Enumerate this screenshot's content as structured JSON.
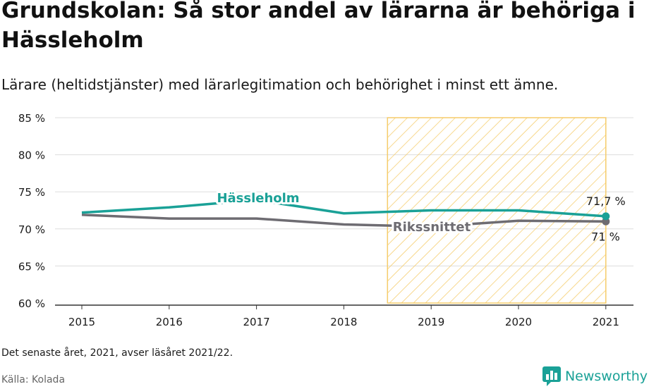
{
  "title": "Grundskolan: Så stor andel av lärarna är behöriga i Hässleholm",
  "subtitle": "Lärare (heltidstjänster) med lärarlegitimation och behörighet i minst ett ämne.",
  "note": "Det senaste året, 2021, avser läsåret 2021/22.",
  "source": "Källa: Kolada",
  "brand": "Newsworthy",
  "colors": {
    "hassleholm": "#1aa197",
    "riket": "#6e6c72",
    "highlight": "#f5cc6a",
    "grid": "#dddddd",
    "text": "#1a1a1a"
  },
  "chart_data": {
    "type": "line",
    "x": [
      "2015",
      "2016",
      "2017",
      "2018",
      "2019",
      "2020",
      "2021"
    ],
    "yticks": [
      "60 %",
      "65 %",
      "70 %",
      "75 %",
      "80 %",
      "85 %"
    ],
    "ylim": [
      60,
      85
    ],
    "series": [
      {
        "name": "Hässleholm",
        "values": [
          72.2,
          72.9,
          73.9,
          72.1,
          72.5,
          72.5,
          71.7
        ],
        "end_label": "71,7 %"
      },
      {
        "name": "Rikssnittet",
        "values": [
          71.9,
          71.4,
          71.4,
          70.6,
          70.3,
          71.1,
          71.0
        ],
        "end_label": "71 %"
      }
    ],
    "highlight_range": [
      "2018.5",
      "2021"
    ],
    "grid": true,
    "legend": "inline labels"
  }
}
